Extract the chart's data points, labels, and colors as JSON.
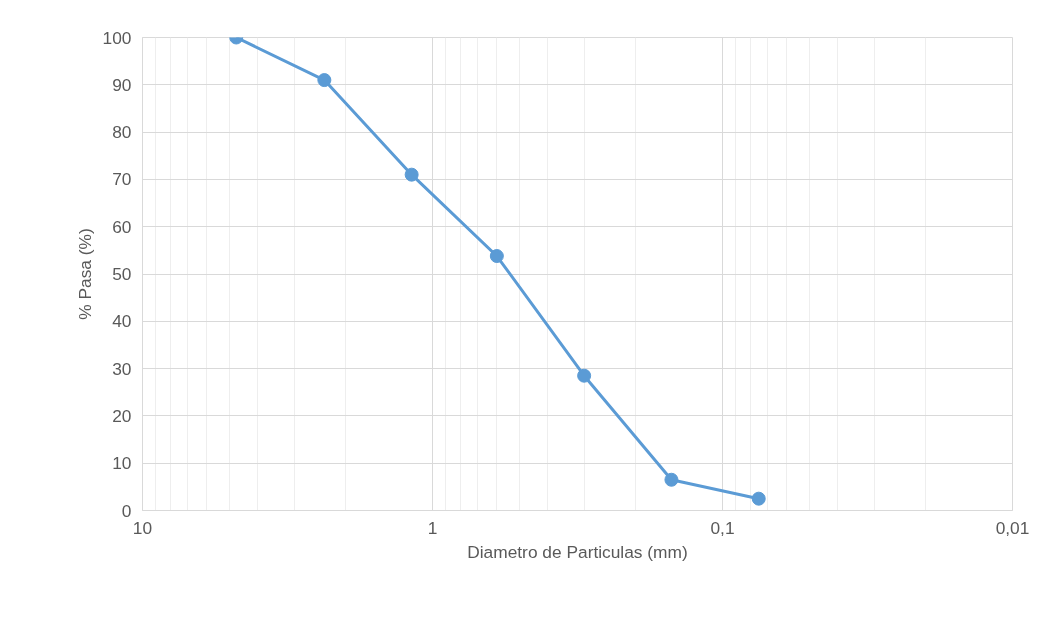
{
  "chart_data": {
    "type": "line",
    "xlabel": "Diametro de Particulas (mm)",
    "ylabel": "% Pasa (%)",
    "x": [
      4.75,
      2.36,
      1.18,
      0.6,
      0.3,
      0.15,
      0.075
    ],
    "series": [
      {
        "color": "#5b9bd5",
        "values": [
          100,
          91,
          71,
          53.8,
          28.5,
          6.5,
          2.5
        ]
      }
    ],
    "log": "x",
    "xlim": [
      10,
      0.01
    ],
    "xticks": [
      10,
      1,
      {
        "value": 0.1,
        "label": "0,1"
      },
      {
        "value": 0.01,
        "label": "0,01"
      }
    ],
    "ylim": [
      0,
      100
    ],
    "yticks": [
      0,
      10,
      20,
      30,
      40,
      50,
      60,
      70,
      80,
      90,
      100
    ],
    "grid": true,
    "marker": "circle",
    "line_style": "solid"
  }
}
